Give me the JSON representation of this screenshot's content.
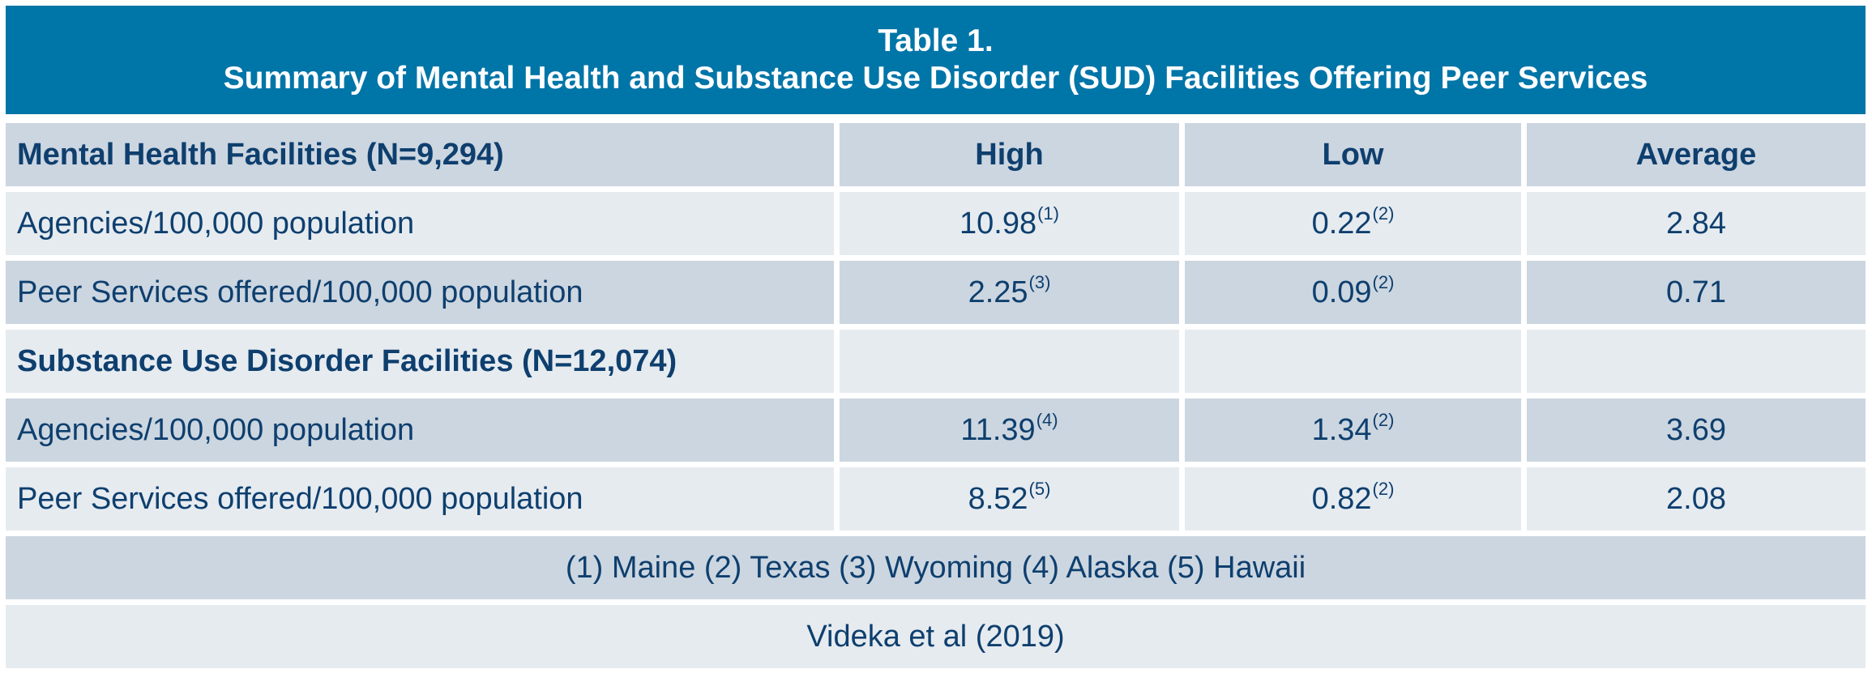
{
  "title": {
    "line1": "Table 1.",
    "line2": "Summary of Mental Health and Substance Use Disorder (SUD) Facilities Offering Peer Services"
  },
  "colors": {
    "header_bg": "#0075a8",
    "row_dark": "#ccd6e0",
    "row_light": "#e6ebf0",
    "text": "#0e3f6e"
  },
  "columns": [
    "High",
    "Low",
    "Average"
  ],
  "sections": [
    {
      "label": "Mental Health Facilities (N=9,294)",
      "rows": [
        {
          "label": "Agencies/100,000 population",
          "high": "10.98",
          "high_note": "(1)",
          "low": "0.22",
          "low_note": "(2)",
          "average": "2.84"
        },
        {
          "label": "Peer Services offered/100,000 population",
          "high": "2.25",
          "high_note": "(3)",
          "low": "0.09",
          "low_note": "(2)",
          "average": "0.71"
        }
      ]
    },
    {
      "label": "Substance Use Disorder Facilities (N=12,074)",
      "rows": [
        {
          "label": "Agencies/100,000 population",
          "high": "11.39",
          "high_note": "(4)",
          "low": "1.34",
          "low_note": "(2)",
          "average": "3.69"
        },
        {
          "label": "Peer Services offered/100,000 population",
          "high": "8.52",
          "high_note": "(5)",
          "low": "0.82",
          "low_note": "(2)",
          "average": "2.08"
        }
      ]
    }
  ],
  "footnote": "(1) Maine (2) Texas (3) Wyoming (4) Alaska (5) Hawaii",
  "citation": "Videka et al (2019)"
}
